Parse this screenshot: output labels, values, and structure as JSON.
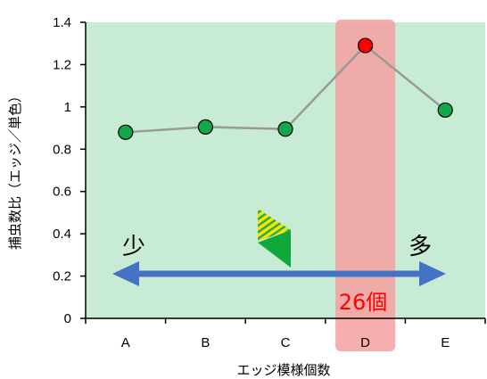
{
  "chart_data": {
    "type": "line",
    "title": "",
    "xlabel": "エッジ模様個数",
    "ylabel": "捕虫数比（エッジ／単色）",
    "categories": [
      "A",
      "B",
      "C",
      "D",
      "E"
    ],
    "values": [
      0.88,
      0.905,
      0.895,
      1.29,
      0.985
    ],
    "ylim": [
      0,
      1.4
    ],
    "yticks": [
      "0",
      "0.2",
      "0.4",
      "0.6",
      "0.8",
      "1",
      "1.2",
      "1.4"
    ],
    "grid": false,
    "highlight": {
      "category": "D",
      "label": "26個",
      "color": "#ff0000"
    },
    "annotations": {
      "left": "少",
      "right": "多"
    },
    "colors": {
      "plot_background": "#c8ebd5",
      "highlight_band": "#f4a0a0",
      "line": "#999999",
      "marker": "#12a84a",
      "marker_highlight": "#ff0000",
      "arrow": "#4472c4"
    }
  }
}
